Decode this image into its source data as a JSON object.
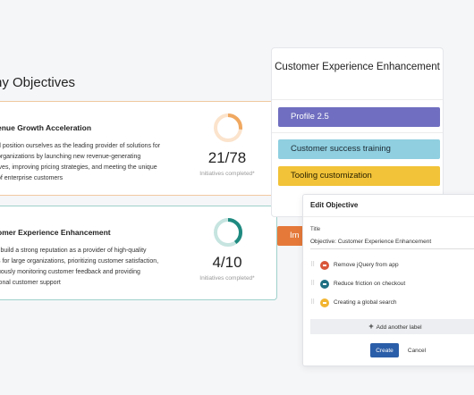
{
  "page": {
    "heading": "ny Objectives"
  },
  "cards": [
    {
      "title": "enue Growth Acceleration",
      "desc": [
        "d position ourselves as the leading provider of solutions for",
        "organizations by launching new revenue-generating",
        "ives, improving pricing strategies, and meeting the unique",
        "of enterprise customers"
      ],
      "count": "21/78",
      "sub": "Initiatives completed*",
      "progress": 0.27,
      "color": "#f0a860",
      "track": "#fbe3cc"
    },
    {
      "title": "omer Experience Enhancement",
      "desc": [
        "l build a strong reputation as a provider of high-quality",
        "s for large organizations, prioritizing customer satisfaction,",
        "uously monitoring customer feedback and providing",
        "ional customer support"
      ],
      "count": "4/10",
      "sub": "Initiatives completed*",
      "progress": 0.4,
      "color": "#1f8a80",
      "track": "#c6e4e0"
    }
  ],
  "panel": {
    "title": "Customer Experience Enhancement",
    "items": [
      {
        "label": "Profile 2.5",
        "bg": "#6f6ec0",
        "fg": "#ffffff"
      },
      {
        "label": "Customer success training",
        "bg": "#8fcfe0",
        "fg": "#1d2a33"
      },
      {
        "label": "Tooling customization",
        "bg": "#f2c338",
        "fg": "#2a2200"
      },
      {
        "label": "Im",
        "bg": "#e5793a",
        "fg": "#ffffff"
      }
    ]
  },
  "edit": {
    "title": "Edit Objective",
    "field_label": "Title",
    "field_value": "Objective: Customer Experience Enhancement",
    "labels": [
      {
        "text": "Remove jQuery from app",
        "color": "#d9573a"
      },
      {
        "text": "Reduce friction on checkout",
        "color": "#1f6f82"
      },
      {
        "text": "Creating a global search",
        "color": "#f2b531"
      }
    ],
    "add_label": "Add another label",
    "add_icon": "plus-icon",
    "create": "Create",
    "cancel": "Cancel"
  }
}
